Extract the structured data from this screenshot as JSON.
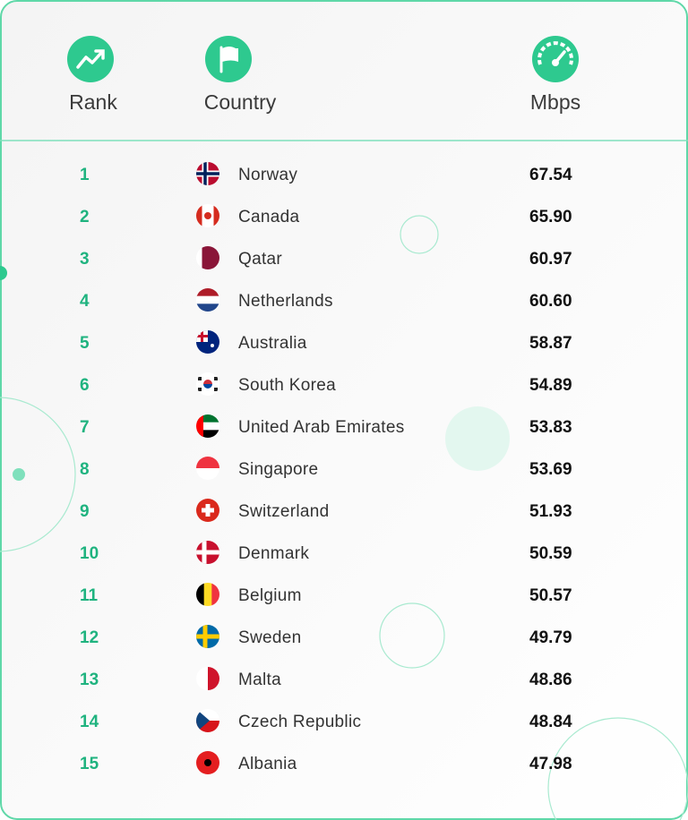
{
  "header": {
    "rank": "Rank",
    "country": "Country",
    "mbps": "Mbps"
  },
  "table": {
    "rows": [
      [
        "1",
        "Norway",
        "67.54"
      ],
      [
        "2",
        "Canada",
        "65.90"
      ],
      [
        "3",
        "Qatar",
        "60.97"
      ],
      [
        "4",
        "Netherlands",
        "60.60"
      ],
      [
        "5",
        "Australia",
        "58.87"
      ],
      [
        "6",
        "South Korea",
        "54.89"
      ],
      [
        "7",
        "United Arab Emirates",
        "53.83"
      ],
      [
        "8",
        "Singapore",
        "53.69"
      ],
      [
        "9",
        "Switzerland",
        "51.93"
      ],
      [
        "10",
        "Denmark",
        "50.59"
      ],
      [
        "11",
        "Belgium",
        "50.57"
      ],
      [
        "12",
        "Sweden",
        "49.79"
      ],
      [
        "13",
        "Malta",
        "48.86"
      ],
      [
        "14",
        "Czech Republic",
        "48.84"
      ],
      [
        "15",
        "Albania",
        "47.98"
      ]
    ]
  }
}
